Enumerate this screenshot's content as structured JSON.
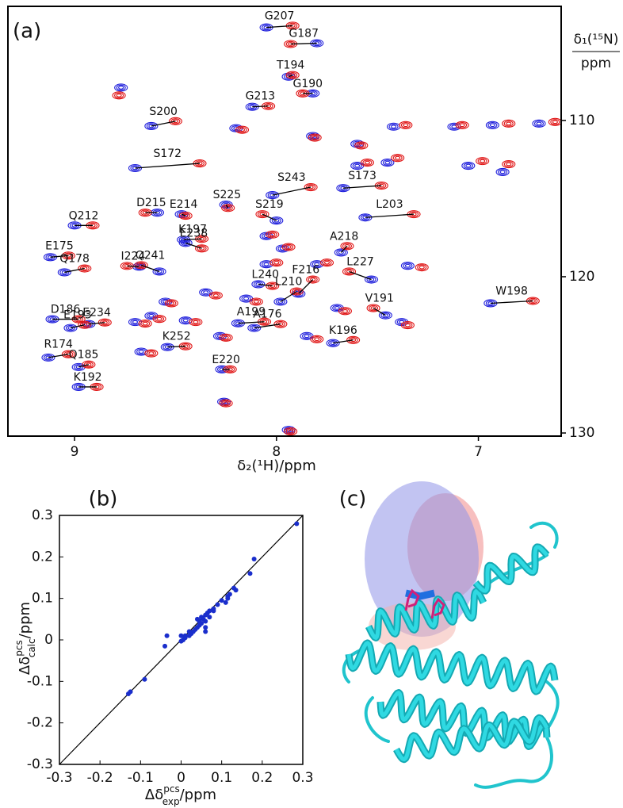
{
  "chart_data": [
    {
      "type": "spectrum",
      "panel_label": "(a)",
      "x_label": "δ₂(¹H)/ppm",
      "y_label": [
        "δ₁(¹⁵N)",
        "ppm"
      ],
      "xlim": [
        9.33,
        6.59
      ],
      "ylim": [
        130.2,
        102.7
      ],
      "xticks": [
        9,
        8,
        7
      ],
      "yticks": [
        110,
        120,
        130
      ],
      "point_labels": [
        "G207",
        "G187",
        "T194",
        "G190",
        "G213",
        "S200",
        "S172",
        "E214",
        "S225",
        "S243",
        "S173",
        "L203",
        "Q212",
        "D215",
        "S219",
        "K197",
        "E238",
        "A218",
        "E175",
        "Q178",
        "I224",
        "Q241",
        "L227",
        "L240",
        "F216",
        "W198",
        "L210",
        "V191",
        "D186",
        "E234",
        "E193",
        "A199",
        "A176",
        "K196",
        "K252",
        "R174",
        "Q185",
        "E220",
        "K192",
        null,
        null,
        null,
        null,
        null,
        null,
        null,
        null,
        null,
        null,
        null,
        null,
        null,
        null,
        null,
        null,
        null,
        null,
        null,
        null,
        null,
        null,
        null,
        null,
        null,
        null,
        null,
        null,
        null,
        null
      ],
      "series": [
        {
          "color": "#1f1fdc",
          "x": [
            8.05,
            7.8,
            7.94,
            7.82,
            8.12,
            8.62,
            8.7,
            8.47,
            8.25,
            8.02,
            7.67,
            7.56,
            9.0,
            8.59,
            8.0,
            8.46,
            8.45,
            7.68,
            9.12,
            9.05,
            8.68,
            8.58,
            7.53,
            8.09,
            7.89,
            6.94,
            7.98,
            7.46,
            9.11,
            8.93,
            9.02,
            8.19,
            8.11,
            7.72,
            8.54,
            9.13,
            8.98,
            8.27,
            8.98,
            8.77,
            8.2,
            7.82,
            7.6,
            7.42,
            7.12,
            6.93,
            6.7,
            7.45,
            7.05,
            7.6,
            6.88,
            8.05,
            7.97,
            7.35,
            8.05,
            7.8,
            8.55,
            8.35,
            8.62,
            8.45,
            8.7,
            8.15,
            7.7,
            7.85,
            7.38,
            8.26,
            7.94,
            8.67,
            8.28
          ],
          "y": [
            104.05,
            105.06,
            107.2,
            108.27,
            109.13,
            110.36,
            113.05,
            116.0,
            115.39,
            114.78,
            114.33,
            116.21,
            116.72,
            115.9,
            116.41,
            117.63,
            117.84,
            118.45,
            118.75,
            119.72,
            119.36,
            119.67,
            120.18,
            120.48,
            121.09,
            121.7,
            121.6,
            122.47,
            122.72,
            123.03,
            123.28,
            122.98,
            123.28,
            124.25,
            124.5,
            125.17,
            125.78,
            125.93,
            127.05,
            107.9,
            110.5,
            111.0,
            111.5,
            110.4,
            110.4,
            110.3,
            110.2,
            112.7,
            112.9,
            112.9,
            113.3,
            117.4,
            118.2,
            119.3,
            119.2,
            119.2,
            121.6,
            121.0,
            122.5,
            122.8,
            122.9,
            121.4,
            122.0,
            123.8,
            122.9,
            128.0,
            129.8,
            124.8,
            123.8
          ]
        },
        {
          "color": "#e01414",
          "x": [
            7.92,
            7.93,
            7.92,
            7.87,
            8.04,
            8.5,
            8.38,
            8.45,
            8.24,
            7.83,
            7.48,
            7.32,
            8.91,
            8.65,
            8.07,
            8.37,
            8.37,
            7.65,
            9.03,
            8.95,
            8.74,
            8.67,
            7.64,
            8.02,
            7.82,
            6.73,
            7.9,
            7.52,
            8.98,
            8.85,
            8.95,
            8.06,
            7.98,
            7.62,
            8.45,
            9.03,
            8.93,
            8.23,
            8.89,
            8.78,
            8.17,
            7.81,
            7.58,
            7.36,
            7.08,
            6.85,
            6.62,
            7.4,
            6.98,
            7.55,
            6.85,
            8.02,
            7.94,
            7.28,
            8.0,
            7.75,
            8.52,
            8.3,
            8.58,
            8.4,
            8.65,
            8.1,
            7.66,
            7.8,
            7.35,
            8.25,
            7.93,
            8.62,
            8.25
          ],
          "y": [
            103.94,
            105.11,
            107.1,
            108.27,
            109.08,
            110.05,
            112.75,
            116.1,
            115.6,
            114.27,
            114.17,
            116.0,
            116.72,
            115.9,
            116.0,
            117.58,
            118.19,
            118.04,
            118.65,
            119.47,
            119.31,
            119.26,
            119.67,
            120.59,
            120.18,
            121.55,
            120.94,
            122.01,
            122.72,
            122.93,
            123.08,
            122.88,
            123.03,
            124.05,
            124.45,
            124.96,
            125.62,
            125.93,
            127.05,
            108.4,
            110.6,
            111.1,
            111.6,
            110.3,
            110.3,
            110.2,
            110.1,
            112.4,
            112.6,
            112.7,
            112.8,
            117.3,
            118.1,
            119.4,
            119.1,
            119.1,
            121.7,
            121.2,
            122.7,
            122.9,
            123.0,
            121.6,
            122.2,
            124.0,
            123.1,
            128.1,
            129.9,
            124.9,
            123.9
          ]
        }
      ]
    },
    {
      "type": "scatter",
      "panel_label": "(b)",
      "x_label": {
        "text": "Δδ",
        "sup": "pcs",
        "sub": "exp",
        "unit": "/ppm"
      },
      "y_label": {
        "text": "Δδ",
        "sup": "pcs",
        "sub": "calc",
        "unit": "/ppm"
      },
      "xlim": [
        -0.3,
        0.3
      ],
      "ylim": [
        -0.3,
        0.3
      ],
      "xticks": [
        -0.3,
        -0.2,
        -0.1,
        0,
        0.1,
        0.2,
        0.3
      ],
      "yticks": [
        -0.3,
        -0.2,
        -0.1,
        0,
        0.1,
        0.2,
        0.3
      ],
      "color": "#1a2ecc",
      "x": [
        0.285,
        0.18,
        0.17,
        0.13,
        0.135,
        0.12,
        0.115,
        0.11,
        0.09,
        0.1,
        0.08,
        0.07,
        0.065,
        0.06,
        0.055,
        0.05,
        0.05,
        0.045,
        0.04,
        0.06,
        0.06,
        0.04,
        0.03,
        0.02,
        0.02,
        0.01,
        0.005,
        0.0,
        0.01,
        0.025,
        0.035,
        0.07,
        0.08,
        0.115,
        0.06,
        -0.035,
        -0.04,
        -0.09,
        -0.125,
        -0.13,
        0.0,
        0.045
      ],
      "y": [
        0.28,
        0.195,
        0.16,
        0.125,
        0.12,
        0.11,
        0.1,
        0.09,
        0.085,
        0.095,
        0.07,
        0.07,
        0.065,
        0.06,
        0.05,
        0.055,
        0.04,
        0.045,
        0.03,
        0.03,
        0.045,
        0.05,
        0.02,
        0.02,
        0.01,
        0.01,
        0.0,
        0.01,
        0.005,
        0.015,
        0.025,
        0.055,
        0.075,
        0.105,
        0.02,
        0.01,
        -0.015,
        -0.095,
        -0.125,
        -0.13,
        -0.003,
        0.035
      ]
    },
    {
      "type": "image",
      "panel_label": "(c)"
    }
  ]
}
